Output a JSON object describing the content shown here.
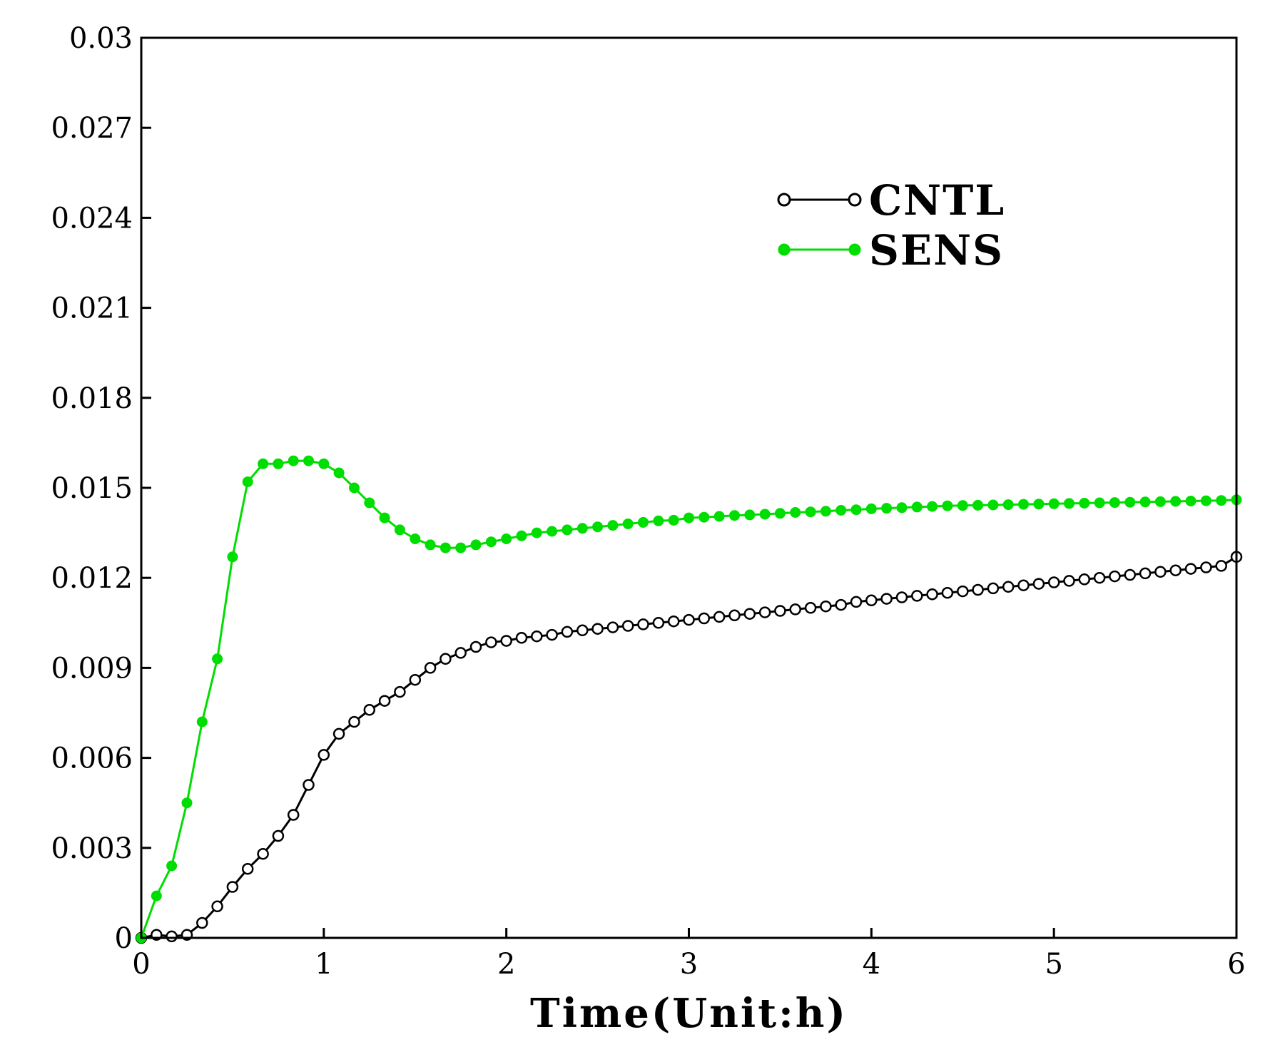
{
  "chart_data": {
    "type": "line",
    "title": "",
    "xlabel": "Time(Unit:h)",
    "ylabel": "",
    "xlim": [
      0,
      6
    ],
    "ylim": [
      0,
      0.03
    ],
    "xticks": [
      0,
      1,
      2,
      3,
      4,
      5,
      6
    ],
    "xtick_labels": [
      "0",
      "1",
      "2",
      "3",
      "4",
      "5",
      "6"
    ],
    "yticks": [
      0,
      0.003,
      0.006,
      0.009,
      0.012,
      0.015,
      0.018,
      0.021,
      0.024,
      0.027,
      0.03
    ],
    "ytick_labels": [
      "0",
      "0.003",
      "0.006",
      "0.009",
      "0.012",
      "0.015",
      "0.018",
      "0.021",
      "0.024",
      "0.027",
      "0.03"
    ],
    "grid": false,
    "legend_position": "top-right",
    "x": [
      0.0,
      0.0833,
      0.1667,
      0.25,
      0.3333,
      0.4167,
      0.5,
      0.5833,
      0.6667,
      0.75,
      0.8333,
      0.9167,
      1.0,
      1.0833,
      1.1667,
      1.25,
      1.3333,
      1.4167,
      1.5,
      1.5833,
      1.6667,
      1.75,
      1.8333,
      1.9167,
      2.0,
      2.0833,
      2.1667,
      2.25,
      2.3333,
      2.4167,
      2.5,
      2.5833,
      2.6667,
      2.75,
      2.8333,
      2.9167,
      3.0,
      3.0833,
      3.1667,
      3.25,
      3.3333,
      3.4167,
      3.5,
      3.5833,
      3.6667,
      3.75,
      3.8333,
      3.9167,
      4.0,
      4.0833,
      4.1667,
      4.25,
      4.3333,
      4.4167,
      4.5,
      4.5833,
      4.6667,
      4.75,
      4.8333,
      4.9167,
      5.0,
      5.0833,
      5.1667,
      5.25,
      5.3333,
      5.4167,
      5.5,
      5.5833,
      5.6667,
      5.75,
      5.8333,
      5.9167,
      6.0
    ],
    "series": [
      {
        "name": "CNTL",
        "color": "#000000",
        "marker": "open-circle",
        "values": [
          0,
          0.0001,
          5e-05,
          0.0001,
          0.0005,
          0.00105,
          0.0017,
          0.0023,
          0.0028,
          0.0034,
          0.0041,
          0.0051,
          0.0061,
          0.0068,
          0.0072,
          0.0076,
          0.0079,
          0.0082,
          0.0086,
          0.009,
          0.0093,
          0.0095,
          0.0097,
          0.00985,
          0.0099,
          0.01,
          0.01005,
          0.0101,
          0.0102,
          0.01025,
          0.0103,
          0.01035,
          0.0104,
          0.01045,
          0.0105,
          0.01055,
          0.0106,
          0.01065,
          0.0107,
          0.01075,
          0.0108,
          0.01085,
          0.0109,
          0.01095,
          0.011,
          0.01105,
          0.0111,
          0.0112,
          0.01125,
          0.0113,
          0.01135,
          0.0114,
          0.01145,
          0.0115,
          0.01155,
          0.0116,
          0.01165,
          0.0117,
          0.01175,
          0.0118,
          0.01185,
          0.0119,
          0.01195,
          0.012,
          0.01205,
          0.0121,
          0.01215,
          0.0122,
          0.01225,
          0.0123,
          0.01235,
          0.0124,
          0.0127
        ]
      },
      {
        "name": "SENS",
        "color": "#00dd00",
        "marker": "filled-circle",
        "values": [
          0,
          0.0014,
          0.0024,
          0.0045,
          0.0072,
          0.0093,
          0.0127,
          0.0152,
          0.0158,
          0.0158,
          0.0159,
          0.0159,
          0.0158,
          0.0155,
          0.015,
          0.0145,
          0.014,
          0.0136,
          0.0133,
          0.0131,
          0.013,
          0.013,
          0.0131,
          0.0132,
          0.0133,
          0.0134,
          0.0135,
          0.01355,
          0.0136,
          0.01365,
          0.0137,
          0.01375,
          0.0138,
          0.01385,
          0.0139,
          0.01392,
          0.014,
          0.01402,
          0.01405,
          0.01408,
          0.0141,
          0.01412,
          0.01415,
          0.01418,
          0.0142,
          0.01422,
          0.01425,
          0.01427,
          0.0143,
          0.01432,
          0.01434,
          0.01436,
          0.01438,
          0.0144,
          0.01441,
          0.01442,
          0.01443,
          0.01444,
          0.01445,
          0.01446,
          0.01447,
          0.01448,
          0.01449,
          0.0145,
          0.01451,
          0.01452,
          0.01453,
          0.01454,
          0.01455,
          0.01456,
          0.01457,
          0.01458,
          0.0146
        ]
      }
    ]
  }
}
